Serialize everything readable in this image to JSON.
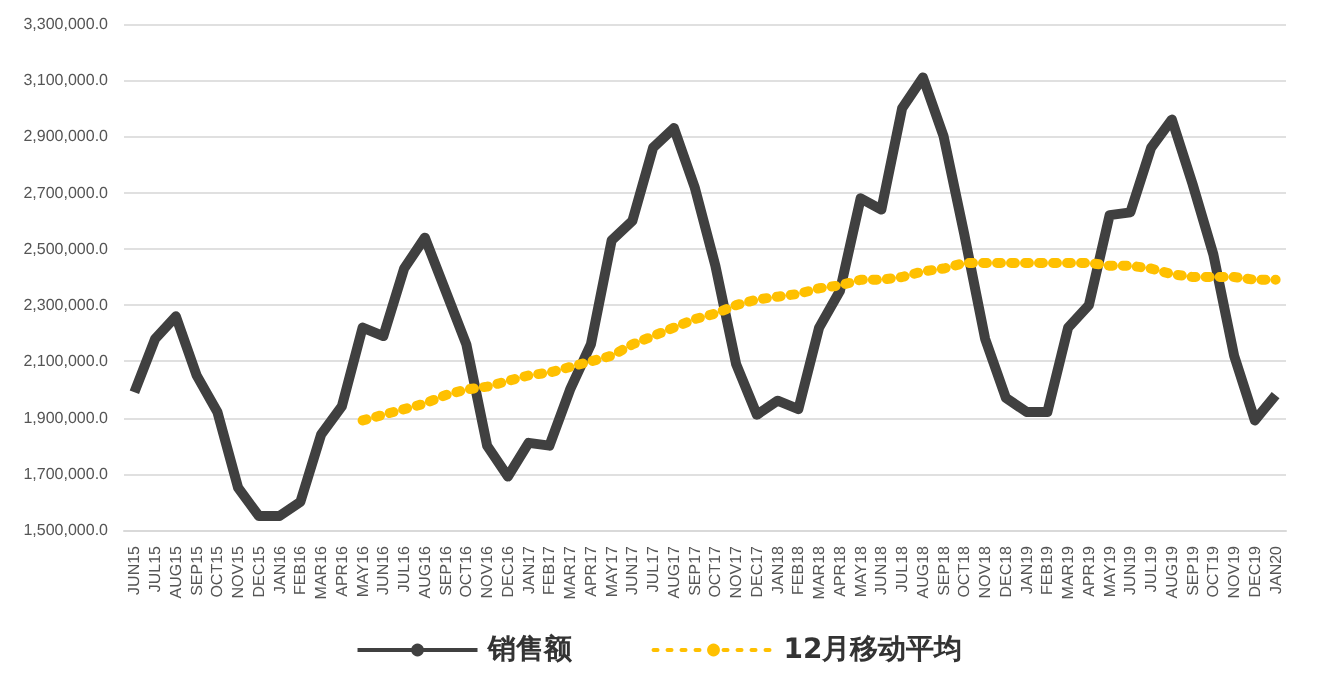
{
  "chart_data": {
    "type": "line",
    "categories": [
      "JUN15",
      "JUL15",
      "AUG15",
      "SEP15",
      "OCT15",
      "NOV15",
      "DEC15",
      "JAN16",
      "FEB16",
      "MAR16",
      "APR16",
      "MAY16",
      "JUN16",
      "JUL16",
      "AUG16",
      "SEP16",
      "OCT16",
      "NOV16",
      "DEC16",
      "JAN17",
      "FEB17",
      "MAR17",
      "APR17",
      "MAY17",
      "JUN17",
      "JUL17",
      "AUG17",
      "SEP17",
      "OCT17",
      "NOV17",
      "DEC17",
      "JAN18",
      "FEB18",
      "MAR18",
      "APR18",
      "MAY18",
      "JUN18",
      "JUL18",
      "AUG18",
      "SEP18",
      "OCT18",
      "NOV18",
      "DEC18",
      "JAN19",
      "FEB19",
      "MAR19",
      "APR19",
      "MAY19",
      "JUN19",
      "JUL19",
      "AUG19",
      "SEP19",
      "OCT19",
      "NOV19",
      "DEC19",
      "JAN20"
    ],
    "series": [
      {
        "name": "销售额",
        "color": "#404040",
        "line_style": "solid",
        "values": [
          1990000,
          2180000,
          2260000,
          2050000,
          1920000,
          1650000,
          1550000,
          1550000,
          1600000,
          1840000,
          1940000,
          2220000,
          2190000,
          2430000,
          2540000,
          2350000,
          2160000,
          1800000,
          1690000,
          1810000,
          1800000,
          2000000,
          2160000,
          2530000,
          2600000,
          2860000,
          2930000,
          2720000,
          2440000,
          2090000,
          1910000,
          1960000,
          1930000,
          2220000,
          2350000,
          2680000,
          2640000,
          3000000,
          3110000,
          2900000,
          2550000,
          2180000,
          1970000,
          1920000,
          1920000,
          2220000,
          2300000,
          2620000,
          2630000,
          2860000,
          2960000,
          2730000,
          2480000,
          2120000,
          1890000,
          1980000
        ]
      },
      {
        "name": "12月移动平均",
        "color": "#ffc000",
        "line_style": "dotted",
        "values": [
          null,
          null,
          null,
          null,
          null,
          null,
          null,
          null,
          null,
          null,
          null,
          1890000,
          1910000,
          1930000,
          1950000,
          1980000,
          2000000,
          2010000,
          2030000,
          2050000,
          2060000,
          2080000,
          2100000,
          2120000,
          2160000,
          2190000,
          2220000,
          2250000,
          2270000,
          2300000,
          2320000,
          2330000,
          2340000,
          2360000,
          2370000,
          2390000,
          2390000,
          2400000,
          2420000,
          2430000,
          2450000,
          2450000,
          2450000,
          2450000,
          2450000,
          2450000,
          2450000,
          2440000,
          2440000,
          2430000,
          2410000,
          2400000,
          2400000,
          2400000,
          2390000,
          2390000
        ]
      }
    ],
    "ylim": [
      1500000,
      3300000
    ],
    "yticks": [
      {
        "value": 1500000,
        "label": "1,500,000.0"
      },
      {
        "value": 1700000,
        "label": "1,700,000.0"
      },
      {
        "value": 1900000,
        "label": "1,900,000.0"
      },
      {
        "value": 2100000,
        "label": "2,100,000.0"
      },
      {
        "value": 2300000,
        "label": "2,300,000.0"
      },
      {
        "value": 2500000,
        "label": "2,500,000.0"
      },
      {
        "value": 2700000,
        "label": "2,700,000.0"
      },
      {
        "value": 2900000,
        "label": "2,900,000.0"
      },
      {
        "value": 3100000,
        "label": "3,100,000.0"
      },
      {
        "value": 3300000,
        "label": "3,300,000.0"
      }
    ],
    "grid": "y",
    "legend": "bottom",
    "marker": "none"
  }
}
